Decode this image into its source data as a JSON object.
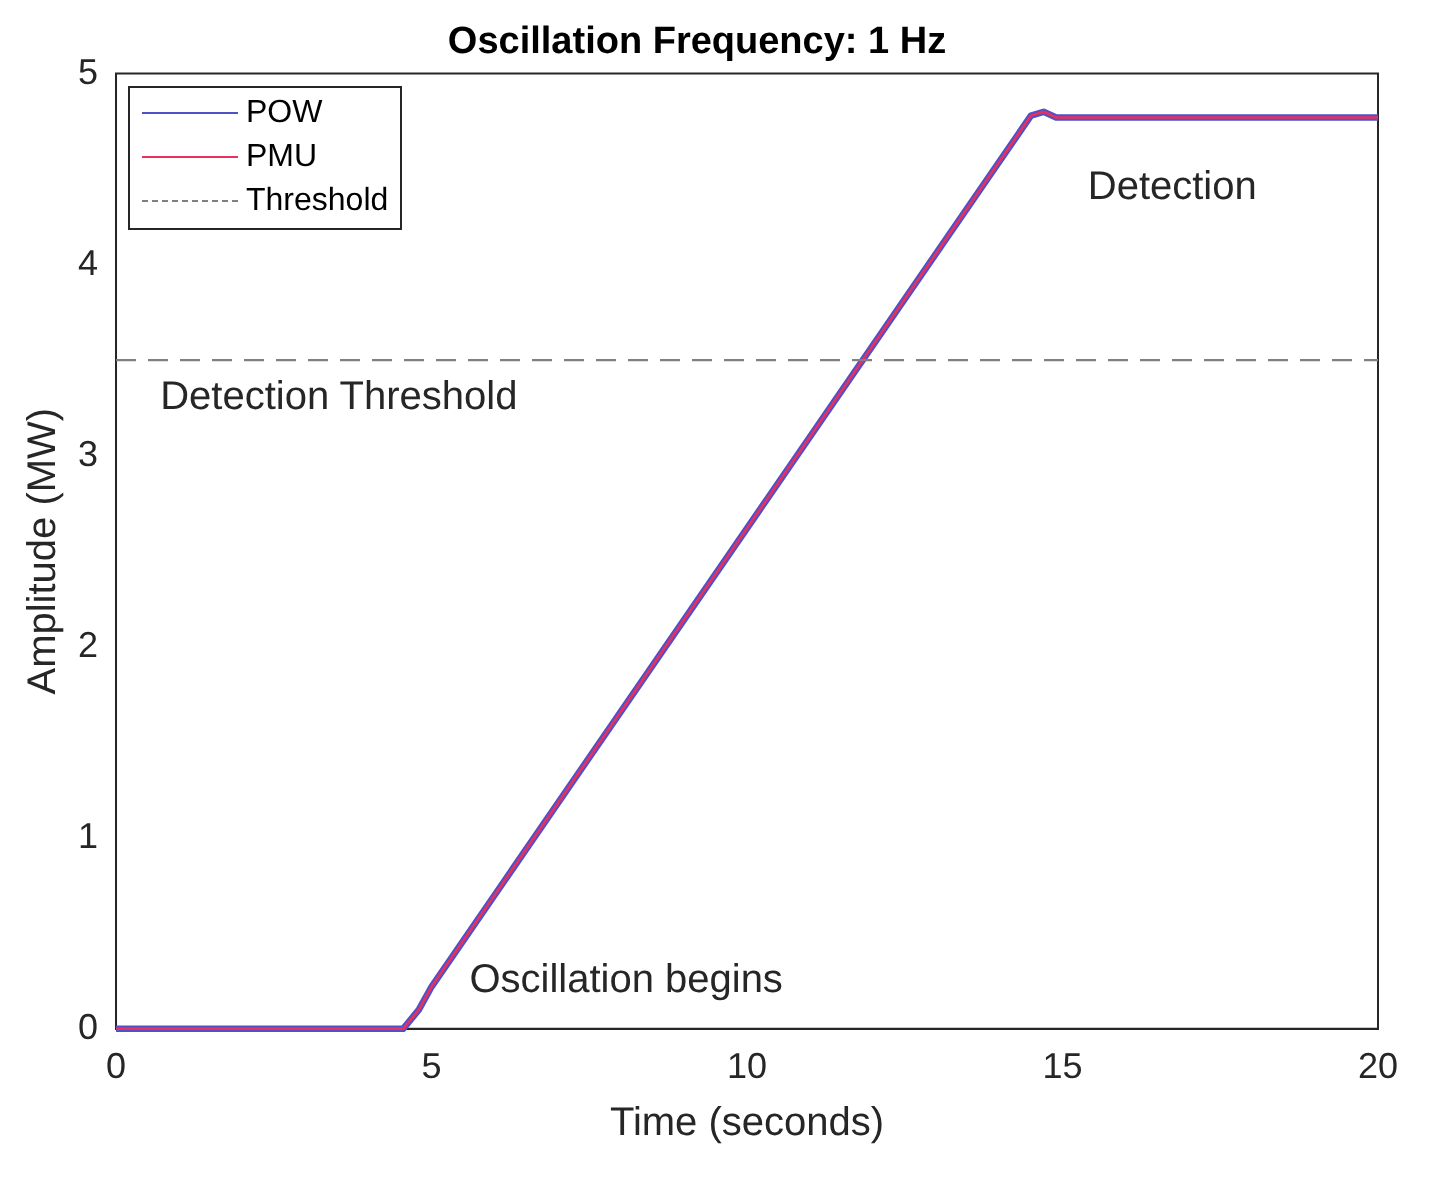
{
  "chart_data": {
    "type": "line",
    "title": "Oscillation Frequency: 1 Hz",
    "xlabel": "Time (seconds)",
    "ylabel": "Amplitude (MW)",
    "series": [
      {
        "name": "POW",
        "color": "#5050c8",
        "x": [
          0,
          4.55,
          4.8,
          5,
          14.5,
          14.7,
          14.9,
          20
        ],
        "values": [
          0,
          0,
          0.1,
          0.22,
          4.78,
          4.8,
          4.77,
          4.77
        ]
      },
      {
        "name": "PMU",
        "color": "#e8305a",
        "x": [
          0,
          4.55,
          4.8,
          5,
          14.5,
          14.7,
          14.9,
          20
        ],
        "values": [
          0,
          0,
          0.1,
          0.22,
          4.78,
          4.8,
          4.77,
          4.77
        ]
      }
    ],
    "ref_lines": [
      {
        "axis": "y",
        "value": 3.5,
        "label": "Threshold",
        "color": "#808080",
        "line_style": "dashed"
      }
    ],
    "annotations": [
      "Detection Threshold",
      "Oscillation begins",
      "Detection"
    ],
    "xlim": [
      0,
      20
    ],
    "ylim": [
      0,
      5
    ],
    "xticks": [
      0,
      5,
      10,
      15,
      20
    ],
    "yticks": [
      0,
      1,
      2,
      3,
      4,
      5
    ],
    "grid": false,
    "legend": "top left",
    "marker": "none",
    "line_style": "solid"
  }
}
